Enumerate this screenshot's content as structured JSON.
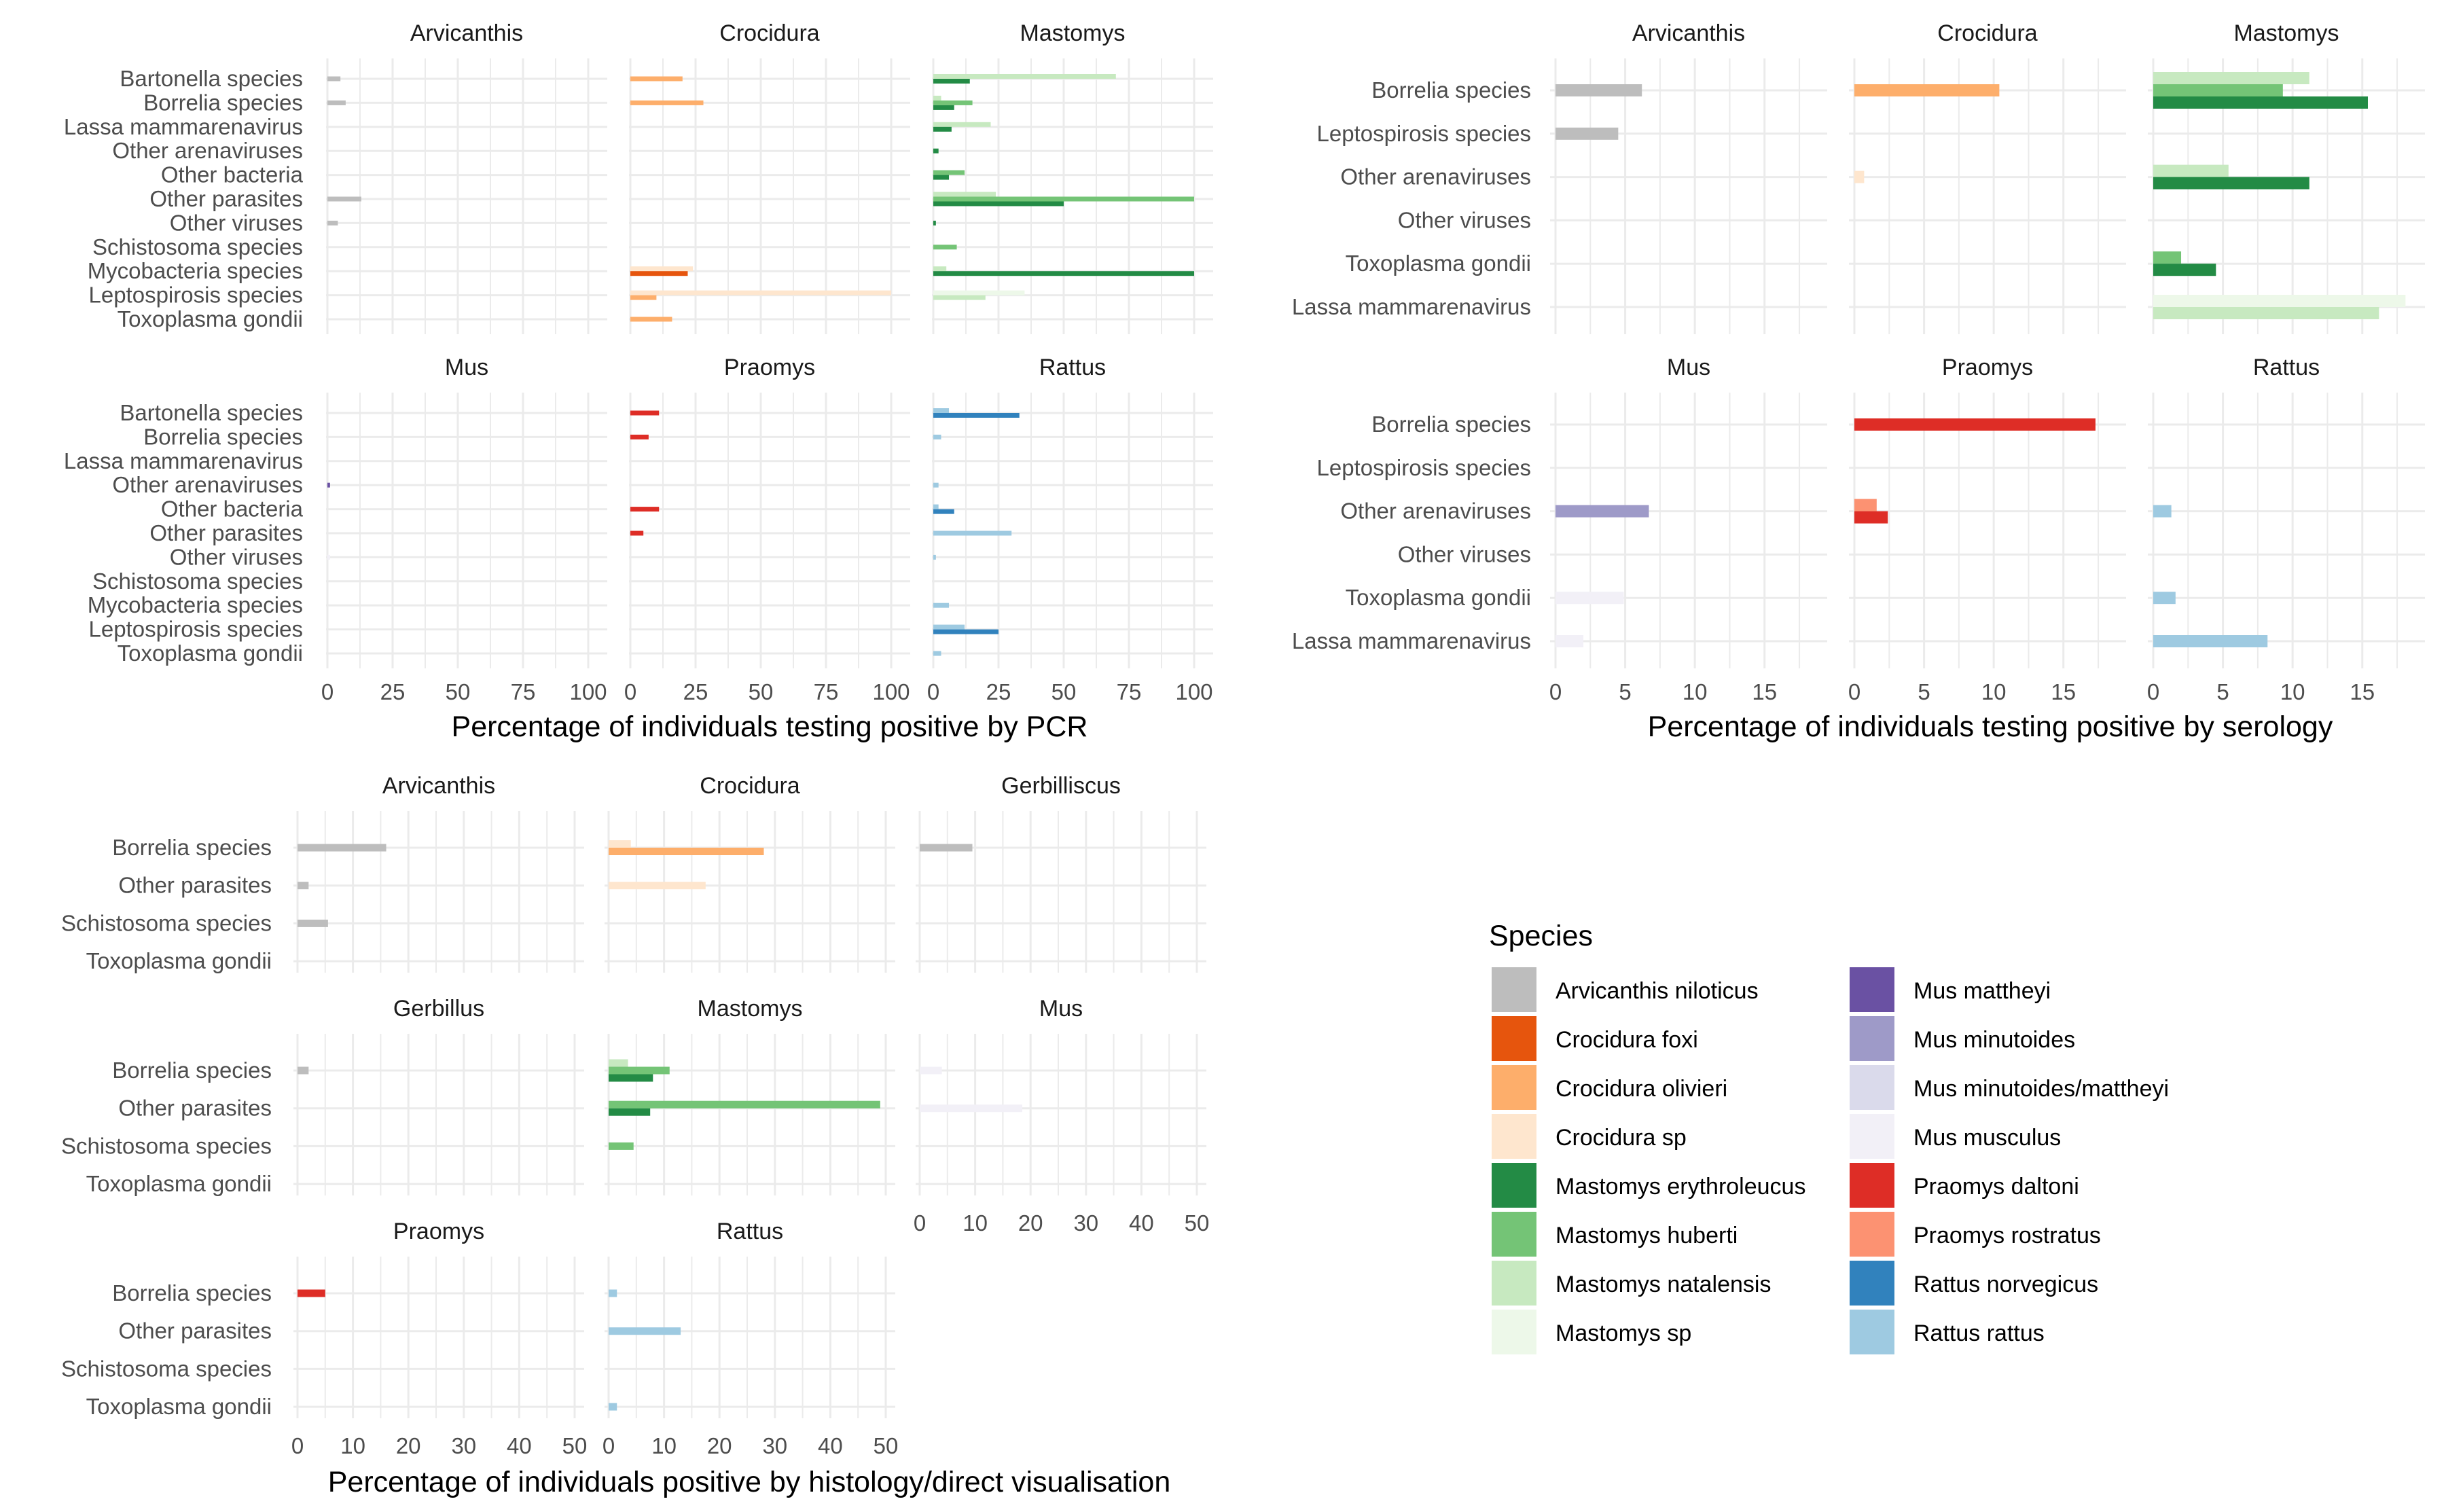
{
  "colors": {
    "Arvicanthis niloticus": "#bdbdbd",
    "Crocidura foxi": "#e6550d",
    "Crocidura olivieri": "#fdae6b",
    "Crocidura sp": "#fee6ce",
    "Mastomys erythroleucus": "#238b45",
    "Mastomys huberti": "#74c476",
    "Mastomys natalensis": "#c7e9c0",
    "Mastomys sp": "#edf8e9",
    "Mus mattheyi": "#6a51a3",
    "Mus minutoides": "#9e9ac8",
    "Mus minutoides/mattheyi": "#dadaeb",
    "Mus musculus": "#f2f0f7",
    "Praomys daltoni": "#de2d26",
    "Praomys rostratus": "#fc9272",
    "Rattus norvegicus": "#3182bd",
    "Rattus rattus": "#9ecae1"
  },
  "legend": {
    "title": "Species",
    "items": [
      "Arvicanthis niloticus",
      "Crocidura foxi",
      "Crocidura olivieri",
      "Crocidura sp",
      "Mastomys erythroleucus",
      "Mastomys huberti",
      "Mastomys natalensis",
      "Mastomys sp",
      "Mus mattheyi",
      "Mus minutoides",
      "Mus minutoides/mattheyi",
      "Mus musculus",
      "Praomys daltoni",
      "Praomys rostratus",
      "Rattus norvegicus",
      "Rattus rattus"
    ]
  },
  "chart_data": [
    {
      "type": "bar",
      "orientation": "horizontal",
      "xlabel": "Percentage of individuals testing positive by PCR",
      "xlim": [
        0,
        100
      ],
      "xticks": [
        0,
        25,
        50,
        75,
        100
      ],
      "categories": [
        "Bartonella species",
        "Borrelia species",
        "Lassa mammarenavirus",
        "Other arenaviruses",
        "Other bacteria",
        "Other parasites",
        "Other viruses",
        "Schistosoma species",
        "Mycobacteria species",
        "Leptospirosis species",
        "Toxoplasma gondii"
      ],
      "panels": [
        {
          "name": "Arvicanthis",
          "bars": [
            {
              "category": "Bartonella species",
              "species": "Arvicanthis niloticus",
              "value": 5
            },
            {
              "category": "Borrelia species",
              "species": "Arvicanthis niloticus",
              "value": 7
            },
            {
              "category": "Other parasites",
              "species": "Arvicanthis niloticus",
              "value": 13
            },
            {
              "category": "Other viruses",
              "species": "Arvicanthis niloticus",
              "value": 4
            }
          ]
        },
        {
          "name": "Crocidura",
          "bars": [
            {
              "category": "Bartonella species",
              "species": "Crocidura olivieri",
              "value": 20
            },
            {
              "category": "Borrelia species",
              "species": "Crocidura olivieri",
              "value": 28
            },
            {
              "category": "Mycobacteria species",
              "species": "Crocidura sp",
              "value": 24
            },
            {
              "category": "Mycobacteria species",
              "species": "Crocidura foxi",
              "value": 22
            },
            {
              "category": "Leptospirosis species",
              "species": "Crocidura sp",
              "value": 100
            },
            {
              "category": "Leptospirosis species",
              "species": "Crocidura olivieri",
              "value": 10
            },
            {
              "category": "Toxoplasma gondii",
              "species": "Crocidura olivieri",
              "value": 16
            }
          ]
        },
        {
          "name": "Mastomys",
          "bars": [
            {
              "category": "Bartonella species",
              "species": "Mastomys natalensis",
              "value": 70
            },
            {
              "category": "Bartonella species",
              "species": "Mastomys erythroleucus",
              "value": 14
            },
            {
              "category": "Borrelia species",
              "species": "Mastomys natalensis",
              "value": 3
            },
            {
              "category": "Borrelia species",
              "species": "Mastomys huberti",
              "value": 15
            },
            {
              "category": "Borrelia species",
              "species": "Mastomys erythroleucus",
              "value": 8
            },
            {
              "category": "Lassa mammarenavirus",
              "species": "Mastomys natalensis",
              "value": 22
            },
            {
              "category": "Lassa mammarenavirus",
              "species": "Mastomys erythroleucus",
              "value": 7
            },
            {
              "category": "Other arenaviruses",
              "species": "Mastomys erythroleucus",
              "value": 2
            },
            {
              "category": "Other bacteria",
              "species": "Mastomys huberti",
              "value": 12
            },
            {
              "category": "Other bacteria",
              "species": "Mastomys erythroleucus",
              "value": 6
            },
            {
              "category": "Other parasites",
              "species": "Mastomys natalensis",
              "value": 24
            },
            {
              "category": "Other parasites",
              "species": "Mastomys huberti",
              "value": 100
            },
            {
              "category": "Other parasites",
              "species": "Mastomys erythroleucus",
              "value": 50
            },
            {
              "category": "Other viruses",
              "species": "Mastomys erythroleucus",
              "value": 1
            },
            {
              "category": "Schistosoma species",
              "species": "Mastomys huberti",
              "value": 9
            },
            {
              "category": "Mycobacteria species",
              "species": "Mastomys natalensis",
              "value": 5
            },
            {
              "category": "Mycobacteria species",
              "species": "Mastomys erythroleucus",
              "value": 100
            },
            {
              "category": "Leptospirosis species",
              "species": "Mastomys sp",
              "value": 35
            },
            {
              "category": "Leptospirosis species",
              "species": "Mastomys natalensis",
              "value": 20
            }
          ]
        },
        {
          "name": "Mus",
          "bars": [
            {
              "category": "Other arenaviruses",
              "species": "Mus mattheyi",
              "value": 1
            },
            {
              "category": "Other viruses",
              "species": "Mus musculus",
              "value": 1
            }
          ]
        },
        {
          "name": "Praomys",
          "bars": [
            {
              "category": "Bartonella species",
              "species": "Praomys daltoni",
              "value": 11
            },
            {
              "category": "Borrelia species",
              "species": "Praomys daltoni",
              "value": 7
            },
            {
              "category": "Other bacteria",
              "species": "Praomys daltoni",
              "value": 11
            },
            {
              "category": "Other parasites",
              "species": "Praomys daltoni",
              "value": 5
            }
          ]
        },
        {
          "name": "Rattus",
          "bars": [
            {
              "category": "Bartonella species",
              "species": "Rattus rattus",
              "value": 6
            },
            {
              "category": "Bartonella species",
              "species": "Rattus norvegicus",
              "value": 33
            },
            {
              "category": "Borrelia species",
              "species": "Rattus rattus",
              "value": 3
            },
            {
              "category": "Other arenaviruses",
              "species": "Rattus rattus",
              "value": 2
            },
            {
              "category": "Other bacteria",
              "species": "Rattus rattus",
              "value": 2
            },
            {
              "category": "Other bacteria",
              "species": "Rattus norvegicus",
              "value": 8
            },
            {
              "category": "Other parasites",
              "species": "Rattus rattus",
              "value": 30
            },
            {
              "category": "Other viruses",
              "species": "Rattus rattus",
              "value": 1
            },
            {
              "category": "Mycobacteria species",
              "species": "Rattus rattus",
              "value": 6
            },
            {
              "category": "Leptospirosis species",
              "species": "Rattus rattus",
              "value": 12
            },
            {
              "category": "Leptospirosis species",
              "species": "Rattus norvegicus",
              "value": 25
            },
            {
              "category": "Toxoplasma gondii",
              "species": "Rattus rattus",
              "value": 3
            }
          ]
        }
      ]
    },
    {
      "type": "bar",
      "orientation": "horizontal",
      "xlabel": "Percentage of individuals testing positive by serology",
      "xlim": [
        0,
        18.5
      ],
      "xticks": [
        0,
        5,
        10,
        15
      ],
      "categories": [
        "Borrelia species",
        "Leptospirosis species",
        "Other arenaviruses",
        "Other viruses",
        "Toxoplasma gondii",
        "Lassa mammarenavirus"
      ],
      "panels": [
        {
          "name": "Arvicanthis",
          "bars": [
            {
              "category": "Borrelia species",
              "species": "Arvicanthis niloticus",
              "value": 6.2
            },
            {
              "category": "Leptospirosis species",
              "species": "Arvicanthis niloticus",
              "value": 4.5
            }
          ]
        },
        {
          "name": "Crocidura",
          "bars": [
            {
              "category": "Borrelia species",
              "species": "Crocidura olivieri",
              "value": 10.4
            },
            {
              "category": "Other arenaviruses",
              "species": "Crocidura sp",
              "value": 0.7
            }
          ]
        },
        {
          "name": "Mastomys",
          "bars": [
            {
              "category": "Borrelia species",
              "species": "Mastomys natalensis",
              "value": 11.2
            },
            {
              "category": "Borrelia species",
              "species": "Mastomys huberti",
              "value": 9.3
            },
            {
              "category": "Borrelia species",
              "species": "Mastomys erythroleucus",
              "value": 15.4
            },
            {
              "category": "Other arenaviruses",
              "species": "Mastomys natalensis",
              "value": 5.4
            },
            {
              "category": "Other arenaviruses",
              "species": "Mastomys erythroleucus",
              "value": 11.2
            },
            {
              "category": "Toxoplasma gondii",
              "species": "Mastomys huberti",
              "value": 2.0
            },
            {
              "category": "Toxoplasma gondii",
              "species": "Mastomys erythroleucus",
              "value": 4.5
            },
            {
              "category": "Lassa mammarenavirus",
              "species": "Mastomys sp",
              "value": 18.1
            },
            {
              "category": "Lassa mammarenavirus",
              "species": "Mastomys natalensis",
              "value": 16.2
            }
          ]
        },
        {
          "name": "Mus",
          "bars": [
            {
              "category": "Other arenaviruses",
              "species": "Mus minutoides",
              "value": 6.7
            },
            {
              "category": "Toxoplasma gondii",
              "species": "Mus musculus",
              "value": 4.9
            },
            {
              "category": "Lassa mammarenavirus",
              "species": "Mus musculus",
              "value": 2.0
            }
          ]
        },
        {
          "name": "Praomys",
          "bars": [
            {
              "category": "Borrelia species",
              "species": "Praomys daltoni",
              "value": 17.3
            },
            {
              "category": "Other arenaviruses",
              "species": "Praomys rostratus",
              "value": 1.6
            },
            {
              "category": "Other arenaviruses",
              "species": "Praomys daltoni",
              "value": 2.4
            }
          ]
        },
        {
          "name": "Rattus",
          "bars": [
            {
              "category": "Other arenaviruses",
              "species": "Rattus rattus",
              "value": 1.3
            },
            {
              "category": "Toxoplasma gondii",
              "species": "Rattus rattus",
              "value": 1.6
            },
            {
              "category": "Lassa mammarenavirus",
              "species": "Rattus rattus",
              "value": 8.2
            }
          ]
        }
      ]
    },
    {
      "type": "bar",
      "orientation": "horizontal",
      "xlabel": "Percentage of individuals positive by histology/direct visualisation",
      "xlim": [
        0,
        50
      ],
      "xticks": [
        0,
        10,
        20,
        30,
        40,
        50
      ],
      "categories": [
        "Borrelia species",
        "Other parasites",
        "Schistosoma species",
        "Toxoplasma gondii"
      ],
      "panels": [
        {
          "name": "Arvicanthis",
          "bars": [
            {
              "category": "Borrelia species",
              "species": "Arvicanthis niloticus",
              "value": 16
            },
            {
              "category": "Other parasites",
              "species": "Arvicanthis niloticus",
              "value": 2
            },
            {
              "category": "Schistosoma species",
              "species": "Arvicanthis niloticus",
              "value": 5.5
            }
          ]
        },
        {
          "name": "Crocidura",
          "bars": [
            {
              "category": "Borrelia species",
              "species": "Crocidura sp",
              "value": 4
            },
            {
              "category": "Borrelia species",
              "species": "Crocidura olivieri",
              "value": 28
            },
            {
              "category": "Other parasites",
              "species": "Crocidura sp",
              "value": 17.5
            }
          ]
        },
        {
          "name": "Gerbilliscus",
          "bars": [
            {
              "category": "Borrelia species",
              "species": "Arvicanthis niloticus",
              "value": 9.5
            }
          ]
        },
        {
          "name": "Gerbillus",
          "bars": [
            {
              "category": "Borrelia species",
              "species": "Arvicanthis niloticus",
              "value": 2
            }
          ]
        },
        {
          "name": "Mastomys",
          "bars": [
            {
              "category": "Borrelia species",
              "species": "Mastomys natalensis",
              "value": 3.5
            },
            {
              "category": "Borrelia species",
              "species": "Mastomys huberti",
              "value": 11
            },
            {
              "category": "Borrelia species",
              "species": "Mastomys erythroleucus",
              "value": 8
            },
            {
              "category": "Other parasites",
              "species": "Mastomys huberti",
              "value": 49
            },
            {
              "category": "Other parasites",
              "species": "Mastomys erythroleucus",
              "value": 7.5
            },
            {
              "category": "Schistosoma species",
              "species": "Mastomys huberti",
              "value": 4.5
            }
          ]
        },
        {
          "name": "Mus",
          "bars": [
            {
              "category": "Borrelia species",
              "species": "Mus musculus",
              "value": 4
            },
            {
              "category": "Other parasites",
              "species": "Mus musculus",
              "value": 18.5
            }
          ]
        },
        {
          "name": "Praomys",
          "bars": [
            {
              "category": "Borrelia species",
              "species": "Praomys daltoni",
              "value": 5
            }
          ]
        },
        {
          "name": "Rattus",
          "bars": [
            {
              "category": "Borrelia species",
              "species": "Rattus rattus",
              "value": 1.5
            },
            {
              "category": "Other parasites",
              "species": "Rattus rattus",
              "value": 13
            },
            {
              "category": "Toxoplasma gondii",
              "species": "Rattus rattus",
              "value": 1.5
            }
          ]
        }
      ]
    }
  ]
}
